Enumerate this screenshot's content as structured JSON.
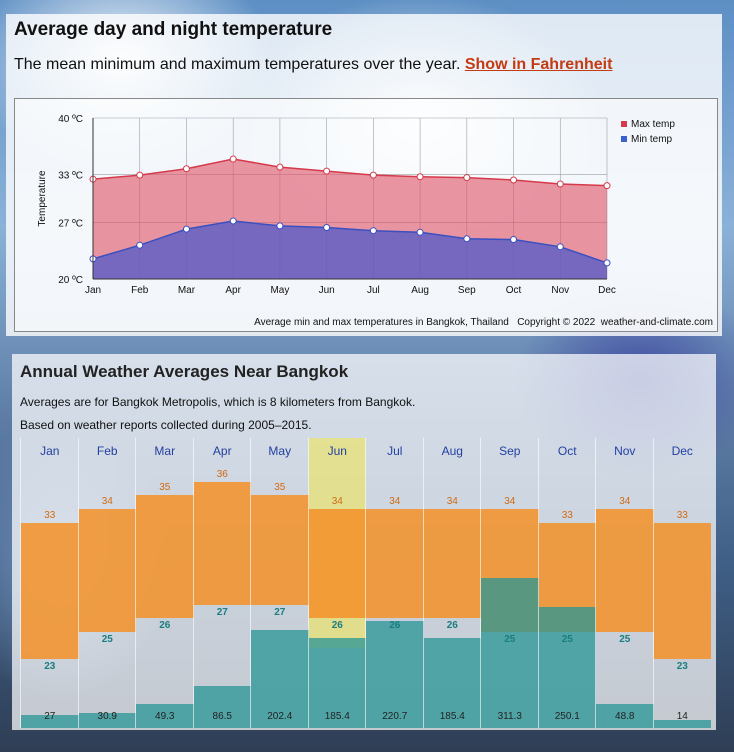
{
  "top_panel": {
    "title": "Average day and night temperature",
    "subtitle": "The mean minimum and maximum temperatures over the year.",
    "fahrenheit_link": "Show in Fahrenheit"
  },
  "chart_data": [
    {
      "type": "area",
      "x": [
        "Jan",
        "Feb",
        "Mar",
        "Apr",
        "May",
        "Jun",
        "Jul",
        "Aug",
        "Sep",
        "Oct",
        "Nov",
        "Dec"
      ],
      "series": [
        {
          "name": "Max temp",
          "color": "#e05a6a",
          "values": [
            32.4,
            32.9,
            33.7,
            34.9,
            33.9,
            33.4,
            32.9,
            32.7,
            32.6,
            32.3,
            31.8,
            31.6
          ]
        },
        {
          "name": "Min temp",
          "color": "#5065c8",
          "values": [
            22.5,
            24.2,
            26.2,
            27.2,
            26.6,
            26.4,
            26.0,
            25.8,
            25.0,
            24.9,
            24.0,
            22.0
          ]
        }
      ],
      "ylabel": "Temperature",
      "ylim": [
        20,
        40
      ],
      "yticks": [
        "20 ºC",
        "27 ºC",
        "33 ºC",
        "40 ºC"
      ],
      "legend": "top-right",
      "footer": "Average min and max temperatures in Bangkok, Thailand   Copyright © 2022  weather-and-climate.com"
    },
    {
      "type": "bar",
      "categories": [
        "Jan",
        "Feb",
        "Mar",
        "Apr",
        "May",
        "Jun",
        "Jul",
        "Aug",
        "Sep",
        "Oct",
        "Nov",
        "Dec"
      ],
      "series": [
        {
          "values": [
            33,
            34,
            35,
            36,
            35,
            34,
            34,
            34,
            34,
            33,
            34,
            33
          ]
        },
        {
          "values": [
            23,
            25,
            26,
            27,
            27,
            26,
            26,
            26,
            25,
            25,
            25,
            23
          ]
        },
        {
          "values": [
            27,
            30.9,
            49.3,
            86.5,
            202.4,
            185.4,
            220.7,
            185.4,
            311.3,
            250.1,
            48.8,
            14
          ]
        }
      ]
    }
  ],
  "bottom_panel": {
    "title": "Annual Weather Averages Near Bangkok",
    "line1": "Averages are for Bangkok Metropolis, which is 8 kilometers from Bangkok.",
    "line2": "Based on weather reports collected during 2005–2015.",
    "highlight_month": "Jun"
  }
}
